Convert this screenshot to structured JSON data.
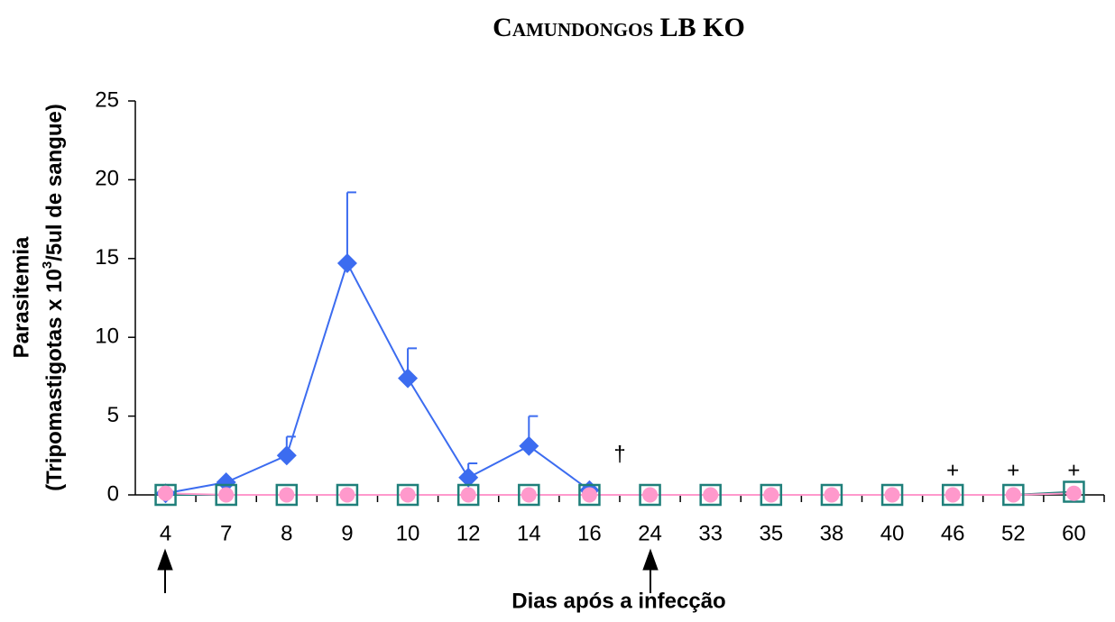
{
  "chart_data": {
    "type": "line",
    "title": "Camundongos LB KO",
    "xlabel": "Dias após a infecção",
    "ylabel": "Parasitemia",
    "ylabel2": [
      "(Tripomastigotas x 10",
      "3",
      "/5ul de sangue)"
    ],
    "categories": [
      "4",
      "7",
      "8",
      "9",
      "10",
      "12",
      "14",
      "16",
      "24",
      "33",
      "35",
      "38",
      "40",
      "46",
      "52",
      "60"
    ],
    "series": [
      {
        "color": "#3c6cf0",
        "marker": "diamond",
        "values": [
          0.1,
          0.8,
          2.5,
          14.7,
          7.4,
          1.1,
          3.1,
          0.3,
          null,
          null,
          null,
          null,
          null,
          null,
          null,
          null
        ],
        "errors": [
          null,
          null,
          1.2,
          4.5,
          1.9,
          0.9,
          1.9,
          null,
          null,
          null,
          null,
          null,
          null,
          null,
          null,
          null
        ]
      },
      {
        "color": "#1f7f7a",
        "marker": "square",
        "values": [
          0,
          0,
          0,
          0,
          0,
          0,
          0,
          0,
          0,
          0,
          0,
          0,
          0,
          0,
          0,
          0.2
        ]
      },
      {
        "color": "#ff99cc",
        "marker": "circle",
        "values": [
          0.1,
          0,
          0,
          0,
          0,
          0,
          0,
          0,
          0,
          0,
          0,
          0,
          0,
          0,
          0,
          0.1
        ]
      }
    ],
    "annotations": [
      "†",
      "+",
      "+",
      "+"
    ],
    "ylim": [
      0,
      25
    ],
    "yticks": [
      0,
      5,
      10,
      15,
      20,
      25
    ]
  }
}
